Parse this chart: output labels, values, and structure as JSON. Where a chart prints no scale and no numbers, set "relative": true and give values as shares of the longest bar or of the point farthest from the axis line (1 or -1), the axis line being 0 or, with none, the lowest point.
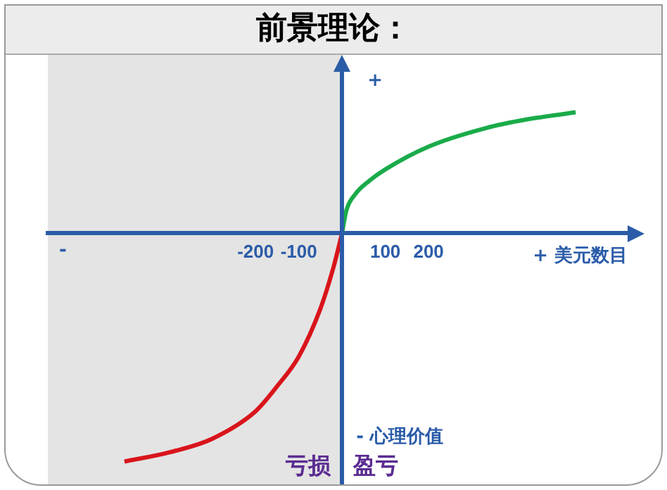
{
  "chart_data": {
    "type": "line",
    "title": "前景理论：",
    "relative": true,
    "xlim": [
      -680,
      660
    ],
    "xticks": [
      -200,
      -100,
      100,
      200
    ],
    "grid": false,
    "legend": false,
    "marker": "none",
    "bands": [
      {
        "axis": "x",
        "from": -680,
        "to": 0,
        "color": "#e4e4e4"
      }
    ],
    "series": [
      {
        "color": "#1aab4a",
        "x": [
          0,
          10,
          30,
          63,
          100,
          200,
          330,
          430,
          540
        ],
        "values": [
          0,
          0.1,
          0.17,
          0.23,
          0.28,
          0.38,
          0.46,
          0.5,
          0.53
        ]
      },
      {
        "color": "#d9141b",
        "x": [
          -503,
          -400,
          -300,
          -200,
          -150,
          -100,
          -50,
          -20,
          0
        ],
        "values": [
          -1,
          -0.96,
          -0.9,
          -0.78,
          -0.67,
          -0.54,
          -0.33,
          -0.15,
          0
        ]
      }
    ],
    "annotations": [
      "+",
      "-",
      "+ 美元数目",
      "- 心理价值",
      "亏损",
      "盈亏"
    ]
  }
}
